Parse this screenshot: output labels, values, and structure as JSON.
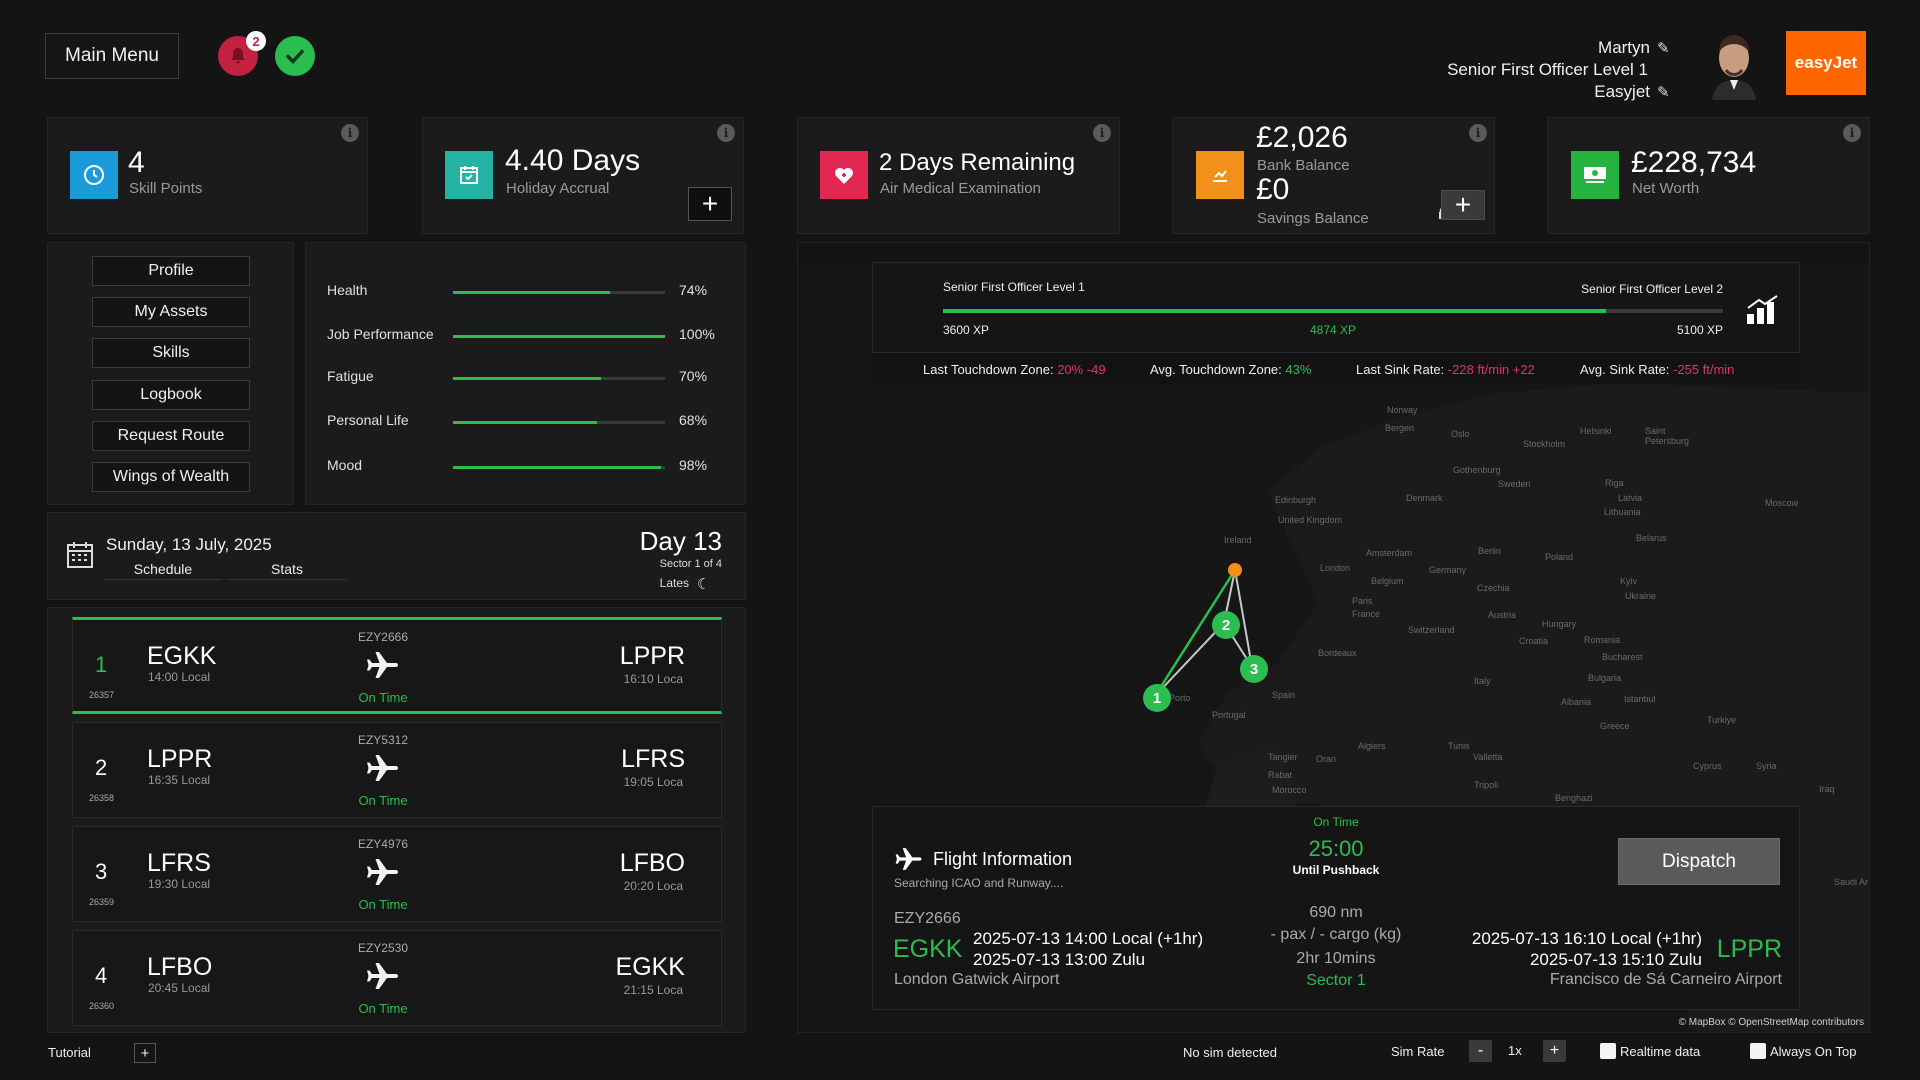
{
  "header": {
    "main_menu": "Main Menu",
    "notification_count": "2",
    "user_name": "Martyn",
    "user_rank": "Senior First Officer Level 1",
    "user_airline": "Easyjet",
    "airline_logo": "easyJet",
    "colors": {
      "bell": "#c2213f",
      "check": "#2bbd4f",
      "brand": "#ff6600"
    }
  },
  "cards": {
    "skill": {
      "value": "4",
      "label": "Skill Points",
      "icon": "clock-icon"
    },
    "holiday": {
      "value": "4.40 Days",
      "label": "Holiday Accrual",
      "icon": "calendar-icon",
      "plus": "+"
    },
    "medical": {
      "value": "2 Days Remaining",
      "label": "Air Medical Examination",
      "icon": "heart-icon"
    },
    "bank": {
      "value": "£2,026",
      "label": "Bank Balance",
      "savings_value": "£0",
      "savings_label": "Savings Balance",
      "icon": "chart-up-icon",
      "plus": "+"
    },
    "networth": {
      "value": "£228,734",
      "label": "Net Worth",
      "icon": "money-icon"
    }
  },
  "menu": {
    "items": [
      "Profile",
      "My Assets",
      "Skills",
      "Logbook",
      "Request Route",
      "Wings of Wealth"
    ]
  },
  "stats": [
    {
      "label": "Health",
      "value": "74%",
      "pct": 0.74
    },
    {
      "label": "Job Performance",
      "value": "100%",
      "pct": 1.0
    },
    {
      "label": "Fatigue",
      "value": "70%",
      "pct": 0.7
    },
    {
      "label": "Personal Life",
      "value": "68%",
      "pct": 0.68
    },
    {
      "label": "Mood",
      "value": "98%",
      "pct": 0.98
    }
  ],
  "schedule": {
    "date": "Sunday, 13 July, 2025",
    "tab_schedule": "Schedule",
    "tab_stats": "Stats",
    "day": "Day 13",
    "sector": "Sector 1 of 4",
    "shift": "Lates"
  },
  "legs": [
    {
      "num": "1",
      "id": "26357",
      "dep": "EGKK",
      "dep_time": "14:00 Local",
      "flight": "EZY2666",
      "status": "On Time",
      "arr": "LPPR",
      "arr_time": "16:10 Loca"
    },
    {
      "num": "2",
      "id": "26358",
      "dep": "LPPR",
      "dep_time": "16:35 Local",
      "flight": "EZY5312",
      "status": "On Time",
      "arr": "LFRS",
      "arr_time": "19:05 Loca"
    },
    {
      "num": "3",
      "id": "26359",
      "dep": "LFRS",
      "dep_time": "19:30 Local",
      "flight": "EZY4976",
      "status": "On Time",
      "arr": "LFBO",
      "arr_time": "20:20 Loca"
    },
    {
      "num": "4",
      "id": "26360",
      "dep": "LFBO",
      "dep_time": "20:45 Local",
      "flight": "EZY2530",
      "status": "On Time",
      "arr": "EGKK",
      "arr_time": "21:15 Loca"
    }
  ],
  "progress": {
    "current_rank": "Senior First Officer Level 1",
    "next_rank": "Senior First Officer Level 2",
    "min_xp": "3600 XP",
    "current_xp": "4874 XP",
    "max_xp": "5100 XP",
    "fraction": 0.85,
    "last_tdz_label": "Last Touchdown Zone:",
    "last_tdz_value": "20% -49",
    "avg_tdz_label": "Avg. Touchdown Zone:",
    "avg_tdz_value": "43%",
    "last_sink_label": "Last Sink Rate:",
    "last_sink_value": "-228 ft/min +22",
    "avg_sink_label": "Avg. Sink Rate:",
    "avg_sink_value": "-255 ft/min"
  },
  "map": {
    "labels": [
      "Norway",
      "Bergen",
      "Oslo",
      "Stockholm",
      "Helsinki",
      "Saint Petersburg",
      "Gothenburg",
      "Sweden",
      "Riga",
      "Latvia",
      "Edinburgh",
      "Denmark",
      "Lithuania",
      "Moscow",
      "United Kingdom",
      "Ireland",
      "Amsterdam",
      "Berlin",
      "Poland",
      "Belarus",
      "London",
      "Germany",
      "Belgium",
      "Kyiv",
      "Ukraine",
      "Paris",
      "Czechia",
      "France",
      "Austria",
      "Hungary",
      "Switzerland",
      "Croatia",
      "Romania",
      "Bordeaux",
      "Bucharest",
      "Bulgaria",
      "Porto",
      "Italy",
      "Portugal",
      "Spain",
      "Istanbul",
      "Albania",
      "Greece",
      "Turkiye",
      "Algiers",
      "Tunis",
      "Tangier",
      "Oran",
      "Valletta",
      "Rabat",
      "Morocco",
      "Tripoli",
      "Benghazi",
      "Cyprus",
      "Syria",
      "Iraq",
      "Saudi Ar"
    ],
    "stops": [
      "1",
      "2",
      "3"
    ],
    "attribution": "© MapBox © OpenStreetMap contributors"
  },
  "flight_info": {
    "title": "Flight Information",
    "subtitle": "Searching ICAO and Runway....",
    "status": "On Time",
    "countdown": "25:00",
    "countdown_label": "Until Pushback",
    "dispatch": "Dispatch",
    "flight": "EZY2666",
    "dep": "EGKK",
    "dep_local": "2025-07-13 14:00 Local (+1hr)",
    "dep_zulu": "2025-07-13 13:00 Zulu",
    "dep_name": "London Gatwick Airport",
    "distance": "690 nm",
    "payload": "- pax / - cargo (kg)",
    "duration": "2hr 10mins",
    "sector": "Sector 1",
    "arr": "LPPR",
    "arr_local": "2025-07-13 16:10 Local (+1hr)",
    "arr_zulu": "2025-07-13 15:10 Zulu",
    "arr_name": "Francisco de Sá Carneiro Airport"
  },
  "footer": {
    "tutorial": "Tutorial",
    "plus": "+",
    "sim_status": "No sim detected",
    "sim_rate_label": "Sim Rate",
    "minus": "-",
    "rate": "1x",
    "realtime": "Realtime data",
    "always_on_top": "Always On Top"
  }
}
